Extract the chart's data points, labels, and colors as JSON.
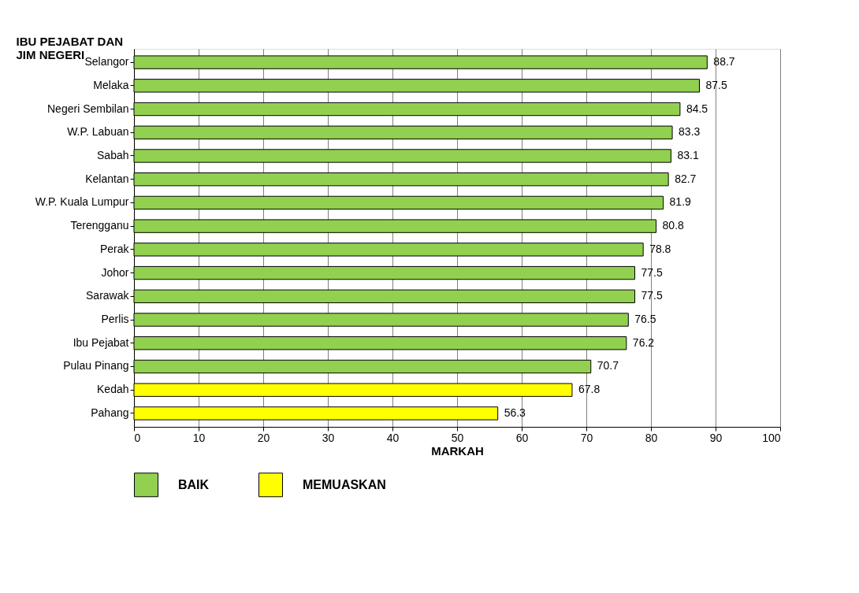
{
  "chart_data": {
    "type": "bar",
    "orientation": "horizontal",
    "ylabel": "IBU PEJABAT DAN\nJIM NEGERI",
    "xlabel": "MARKAH",
    "categories": [
      "Selangor",
      "Melaka",
      "Negeri Sembilan",
      "W.P. Labuan",
      "Sabah",
      "Kelantan",
      "W.P. Kuala Lumpur",
      "Terengganu",
      "Perak",
      "Johor",
      "Sarawak",
      "Perlis",
      "Ibu Pejabat",
      "Pulau Pinang",
      "Kedah",
      "Pahang"
    ],
    "series": [
      {
        "name": "BAIK",
        "color": "#92d050",
        "values": [
          88.7,
          87.5,
          84.5,
          83.3,
          83.1,
          82.7,
          81.9,
          80.8,
          78.8,
          77.5,
          77.5,
          76.5,
          76.2,
          70.7,
          null,
          null
        ]
      },
      {
        "name": "MEMUASKAN",
        "color": "#ffff00",
        "values": [
          null,
          null,
          null,
          null,
          null,
          null,
          null,
          null,
          null,
          null,
          null,
          null,
          null,
          null,
          67.8,
          56.3
        ]
      }
    ],
    "xlim": [
      0,
      100
    ],
    "xticks": [
      0,
      10,
      20,
      30,
      40,
      50,
      60,
      70,
      80,
      90,
      100
    ],
    "grid": "x",
    "legend": "bottom",
    "data_labels": true
  }
}
